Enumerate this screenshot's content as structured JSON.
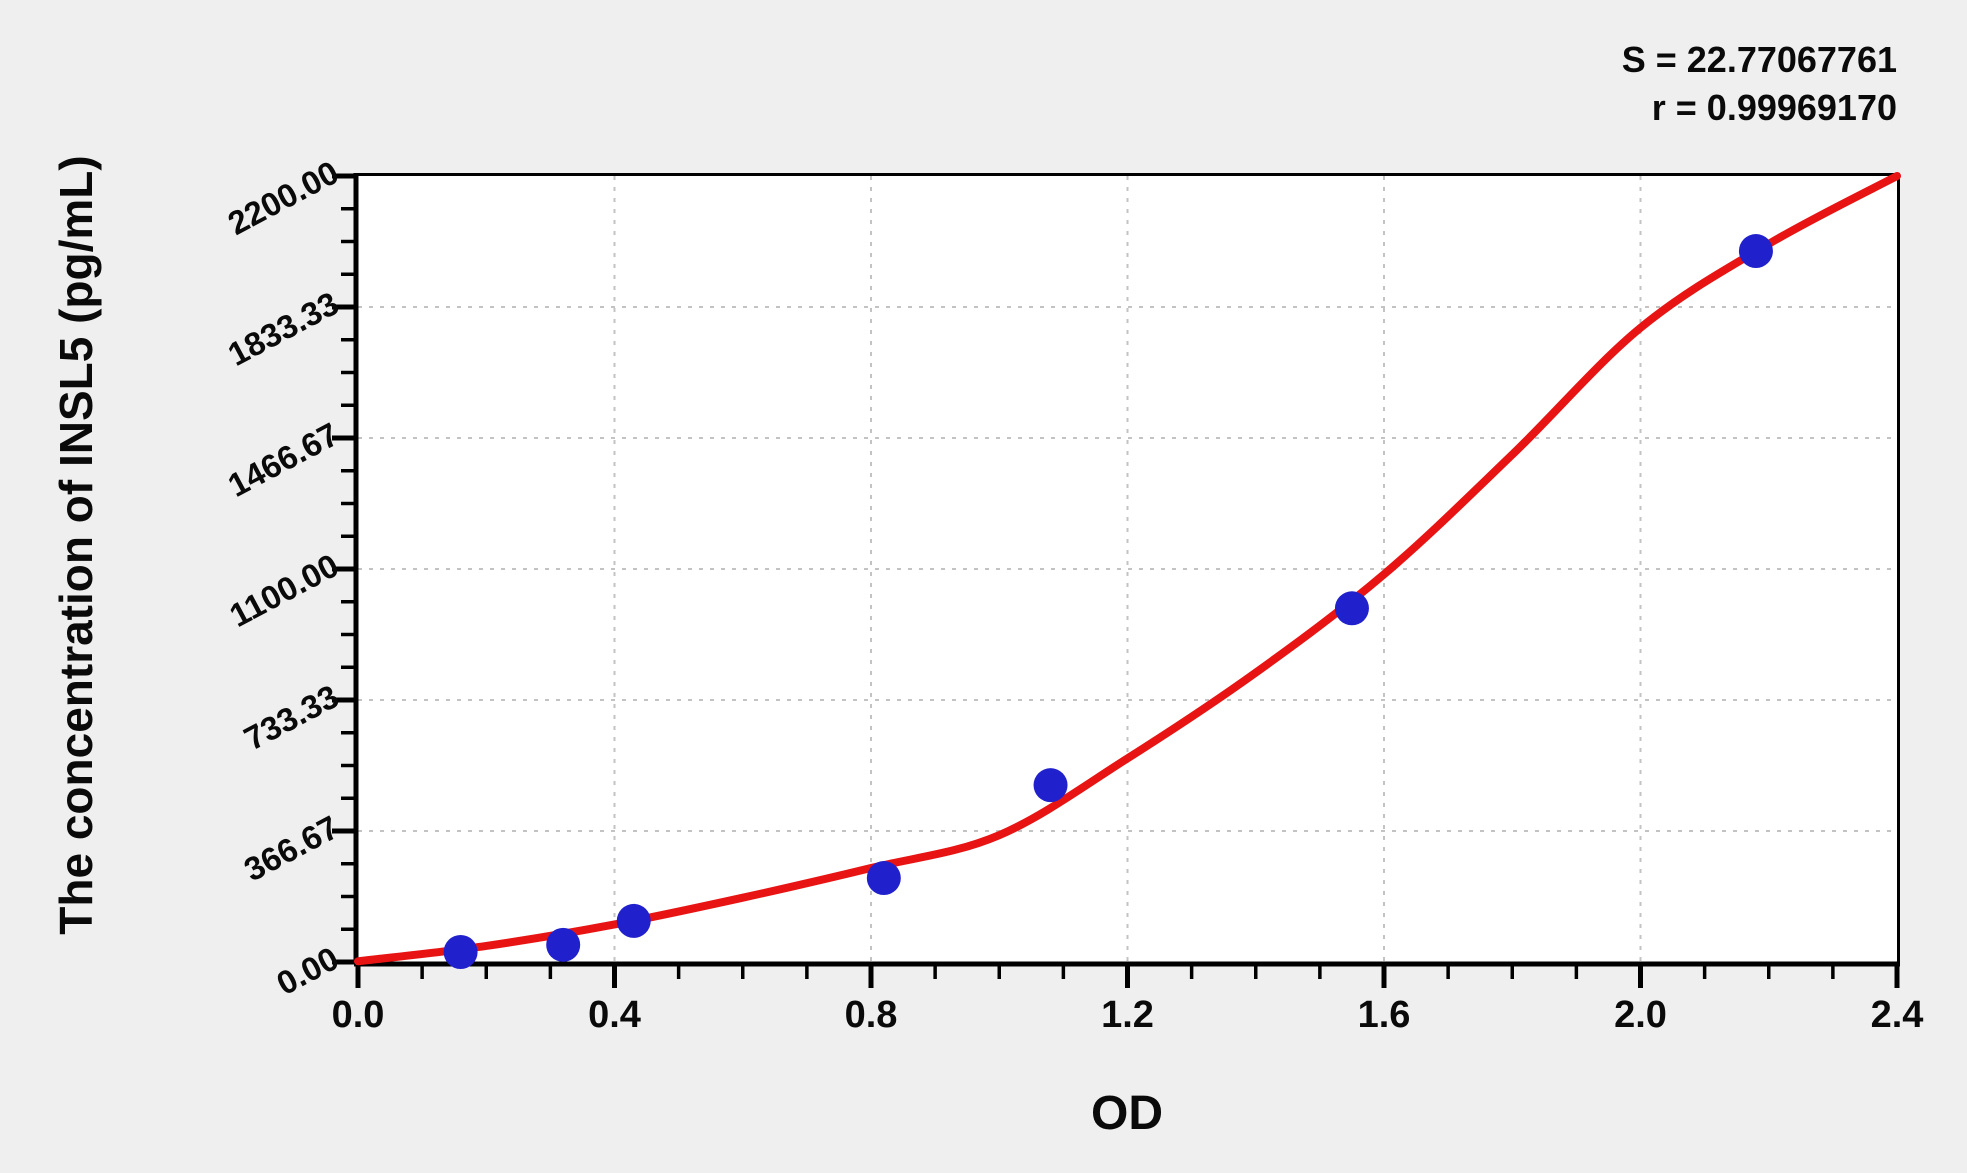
{
  "stats": {
    "s_line": "S = 22.77067761",
    "r_line": "r = 0.99969170"
  },
  "chart_data": {
    "type": "scatter",
    "title": "",
    "xlabel": "OD",
    "ylabel": "The concentration of INSL5 (pg/mL)",
    "xlim": [
      0.0,
      2.4
    ],
    "ylim": [
      0,
      2200
    ],
    "x_ticks": [
      {
        "label": "0.0",
        "value": 0.0
      },
      {
        "label": "0.4",
        "value": 0.4
      },
      {
        "label": "0.8",
        "value": 0.8
      },
      {
        "label": "1.2",
        "value": 1.2
      },
      {
        "label": "1.6",
        "value": 1.6
      },
      {
        "label": "2.0",
        "value": 2.0
      },
      {
        "label": "2.4",
        "value": 2.4
      }
    ],
    "y_ticks": [
      {
        "label": "0.00",
        "value": 0
      },
      {
        "label": "366.67",
        "value": 366.67
      },
      {
        "label": "733.33",
        "value": 733.33
      },
      {
        "label": "1100.00",
        "value": 1100
      },
      {
        "label": "1466.67",
        "value": 1466.67
      },
      {
        "label": "1833.33",
        "value": 1833.33
      },
      {
        "label": "2200.00",
        "value": 2200
      }
    ],
    "x_minor_step": 0.1,
    "y_minor_step": 91.6667,
    "grid": {
      "style": "dashed",
      "color": "#c3c3c3",
      "at_major_ticks": true
    },
    "legend": "none",
    "series": [
      {
        "name": "standard-points",
        "type": "scatter",
        "color": "#2020cc",
        "points": [
          [
            0.16,
            28
          ],
          [
            0.32,
            48
          ],
          [
            0.43,
            115
          ],
          [
            0.82,
            235
          ],
          [
            1.08,
            495
          ],
          [
            1.55,
            990
          ],
          [
            2.18,
            1990
          ]
        ]
      },
      {
        "name": "fitted-curve",
        "type": "line",
        "color": "#e81414",
        "points": [
          [
            0.0,
            2
          ],
          [
            0.2,
            45
          ],
          [
            0.4,
            105
          ],
          [
            0.6,
            180
          ],
          [
            0.8,
            263
          ],
          [
            1.0,
            355
          ],
          [
            1.2,
            570
          ],
          [
            1.4,
            810
          ],
          [
            1.6,
            1085
          ],
          [
            1.8,
            1420
          ],
          [
            2.0,
            1775
          ],
          [
            2.2,
            2010
          ],
          [
            2.4,
            2200
          ]
        ]
      }
    ],
    "annotations": [
      "S = 22.77067761",
      "r = 0.99969170"
    ]
  }
}
